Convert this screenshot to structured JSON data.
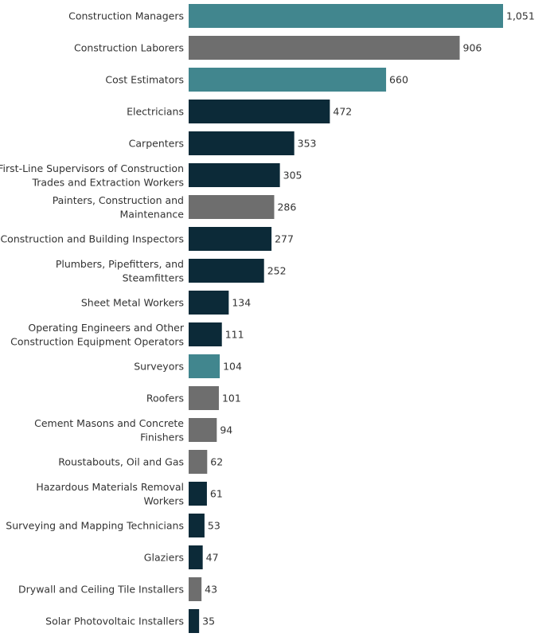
{
  "chart_data": {
    "type": "bar",
    "orientation": "horizontal",
    "title": "",
    "xlabel": "",
    "ylabel": "",
    "xlim": [
      0,
      1051
    ],
    "grid": false,
    "legend": "none",
    "colors": {
      "teal": "#41868e",
      "gray": "#6e6e6e",
      "navy": "#0c2a38"
    },
    "categories": [
      "Construction Managers",
      "Construction Laborers",
      "Cost Estimators",
      "Electricians",
      "Carpenters",
      "First-Line Supervisors of Construction Trades and Extraction Workers",
      "Painters, Construction and Maintenance",
      "Construction and Building Inspectors",
      "Plumbers, Pipefitters, and Steamfitters",
      "Sheet Metal Workers",
      "Operating Engineers and Other Construction Equipment Operators",
      "Surveyors",
      "Roofers",
      "Cement Masons and Concrete Finishers",
      "Roustabouts, Oil and Gas",
      "Hazardous Materials Removal Workers",
      "Surveying and Mapping Technicians",
      "Glaziers",
      "Drywall and Ceiling Tile Installers",
      "Solar Photovoltaic Installers"
    ],
    "label_lines": [
      [
        "Construction Managers"
      ],
      [
        "Construction Laborers"
      ],
      [
        "Cost Estimators"
      ],
      [
        "Electricians"
      ],
      [
        "Carpenters"
      ],
      [
        "First-Line Supervisors of Construction",
        "Trades and Extraction Workers"
      ],
      [
        "Painters, Construction and",
        "Maintenance"
      ],
      [
        "Construction and Building Inspectors"
      ],
      [
        "Plumbers, Pipefitters, and",
        "Steamfitters"
      ],
      [
        "Sheet Metal Workers"
      ],
      [
        "Operating Engineers and Other",
        "Construction Equipment Operators"
      ],
      [
        "Surveyors"
      ],
      [
        "Roofers"
      ],
      [
        "Cement Masons and Concrete",
        "Finishers"
      ],
      [
        "Roustabouts, Oil and Gas"
      ],
      [
        "Hazardous Materials Removal",
        "Workers"
      ],
      [
        "Surveying and Mapping Technicians"
      ],
      [
        "Glaziers"
      ],
      [
        "Drywall and Ceiling Tile Installers"
      ],
      [
        "Solar Photovoltaic Installers"
      ]
    ],
    "values": [
      1051,
      906,
      660,
      472,
      353,
      305,
      286,
      277,
      252,
      134,
      111,
      104,
      101,
      94,
      62,
      61,
      53,
      47,
      43,
      35
    ],
    "value_labels": [
      "1,051",
      "906",
      "660",
      "472",
      "353",
      "305",
      "286",
      "277",
      "252",
      "134",
      "111",
      "104",
      "101",
      "94",
      "62",
      "61",
      "53",
      "47",
      "43",
      "35"
    ],
    "bar_colors": [
      "teal",
      "gray",
      "teal",
      "navy",
      "navy",
      "navy",
      "gray",
      "navy",
      "navy",
      "navy",
      "navy",
      "teal",
      "gray",
      "gray",
      "gray",
      "navy",
      "navy",
      "navy",
      "gray",
      "navy"
    ]
  }
}
